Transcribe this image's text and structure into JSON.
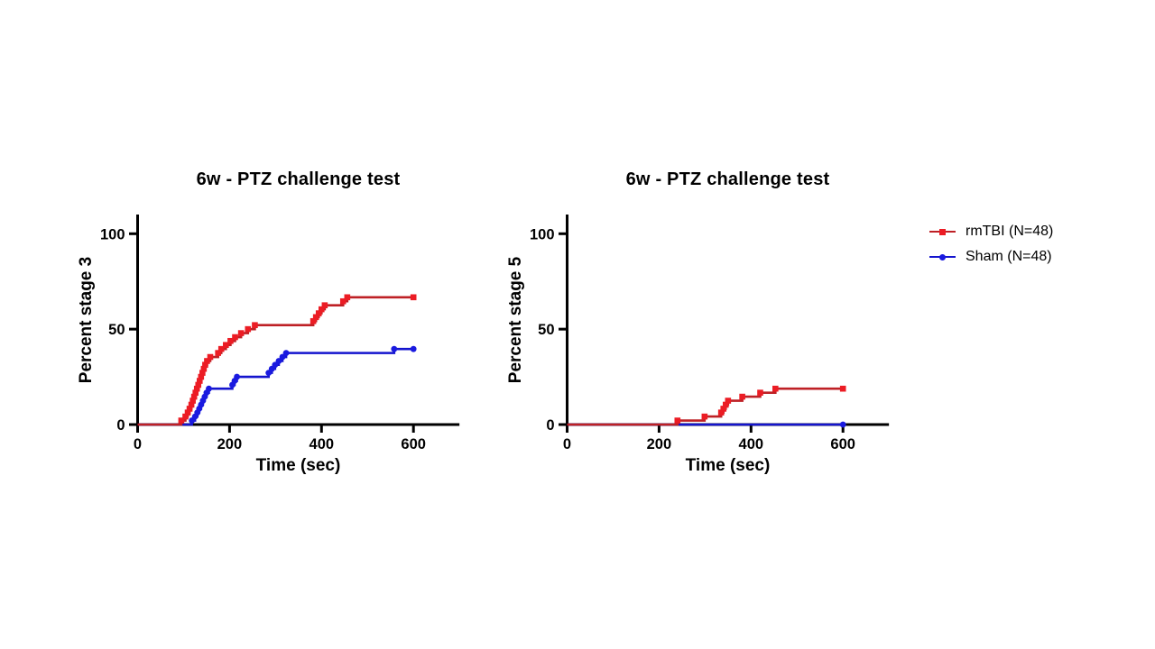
{
  "figure": {
    "background": "#ffffff",
    "text_color": "#000000",
    "axis_color": "#000000"
  },
  "legend": {
    "position": "outside-right",
    "items": [
      {
        "label": "rmTBI (N=48)",
        "marker": "square",
        "marker_color": "#ec1c24",
        "line_color": "#be2025"
      },
      {
        "label": "Sham (N=48)",
        "marker": "circle",
        "marker_color": "#1a1ae0",
        "line_color": "#1414ce"
      }
    ]
  },
  "chart_data": [
    {
      "type": "line",
      "step": true,
      "title": "6w - PTZ challenge test",
      "xlabel": "Time (sec)",
      "ylabel": "Percent stage 3",
      "xlim": [
        0,
        700
      ],
      "ylim": [
        0,
        110
      ],
      "xticks": [
        0,
        200,
        400,
        600
      ],
      "yticks": [
        0,
        50,
        100
      ],
      "grid": false,
      "series": [
        {
          "name": "rmTBI (N=48)",
          "marker": "square",
          "line_color": "#be2025",
          "marker_color": "#ec1c24",
          "points": [
            [
              0,
              0
            ],
            [
              95,
              2.1
            ],
            [
              104,
              4.2
            ],
            [
              109,
              6.3
            ],
            [
              113,
              8.3
            ],
            [
              117,
              10.4
            ],
            [
              120,
              12.5
            ],
            [
              123,
              14.6
            ],
            [
              126,
              16.7
            ],
            [
              129,
              18.8
            ],
            [
              132,
              20.8
            ],
            [
              135,
              22.9
            ],
            [
              138,
              25
            ],
            [
              141,
              27.1
            ],
            [
              144,
              29.2
            ],
            [
              147,
              31.3
            ],
            [
              151,
              33.3
            ],
            [
              158,
              35.4
            ],
            [
              175,
              37.5
            ],
            [
              182,
              39.6
            ],
            [
              192,
              41.7
            ],
            [
              202,
              43.8
            ],
            [
              212,
              45.8
            ],
            [
              225,
              47.9
            ],
            [
              240,
              50
            ],
            [
              255,
              52.1
            ],
            [
              382,
              54.2
            ],
            [
              388,
              56.3
            ],
            [
              394,
              58.3
            ],
            [
              400,
              60.4
            ],
            [
              407,
              62.5
            ],
            [
              447,
              64.6
            ],
            [
              456,
              66.7
            ],
            [
              600,
              66.7
            ]
          ]
        },
        {
          "name": "Sham (N=48)",
          "marker": "circle",
          "line_color": "#1414ce",
          "marker_color": "#1a1ae0",
          "points": [
            [
              0,
              0
            ],
            [
              118,
              2.1
            ],
            [
              125,
              4.2
            ],
            [
              130,
              6.3
            ],
            [
              134,
              8.3
            ],
            [
              138,
              10.4
            ],
            [
              142,
              12.5
            ],
            [
              146,
              14.6
            ],
            [
              150,
              16.7
            ],
            [
              155,
              18.8
            ],
            [
              206,
              20.8
            ],
            [
              211,
              22.9
            ],
            [
              216,
              25
            ],
            [
              285,
              27.1
            ],
            [
              292,
              29.2
            ],
            [
              299,
              31.3
            ],
            [
              307,
              33.3
            ],
            [
              315,
              35.4
            ],
            [
              323,
              37.5
            ],
            [
              558,
              39.6
            ],
            [
              600,
              39.6
            ]
          ]
        }
      ]
    },
    {
      "type": "line",
      "step": true,
      "title": "6w - PTZ challenge test",
      "xlabel": "Time (sec)",
      "ylabel": "Percent stage 5",
      "xlim": [
        0,
        700
      ],
      "ylim": [
        0,
        110
      ],
      "xticks": [
        0,
        200,
        400,
        600
      ],
      "yticks": [
        0,
        50,
        100
      ],
      "grid": false,
      "series": [
        {
          "name": "rmTBI (N=48)",
          "marker": "square",
          "line_color": "#be2025",
          "marker_color": "#ec1c24",
          "points": [
            [
              0,
              0
            ],
            [
              240,
              2.1
            ],
            [
              299,
              4.2
            ],
            [
              335,
              6.3
            ],
            [
              340,
              8.3
            ],
            [
              345,
              10.4
            ],
            [
              350,
              12.5
            ],
            [
              381,
              14.6
            ],
            [
              420,
              16.7
            ],
            [
              453,
              18.8
            ],
            [
              600,
              18.8
            ]
          ]
        },
        {
          "name": "Sham (N=48)",
          "marker": "circle",
          "line_color": "#1414ce",
          "marker_color": "#1a1ae0",
          "points": [
            [
              0,
              0
            ],
            [
              600,
              0
            ]
          ]
        }
      ]
    }
  ]
}
